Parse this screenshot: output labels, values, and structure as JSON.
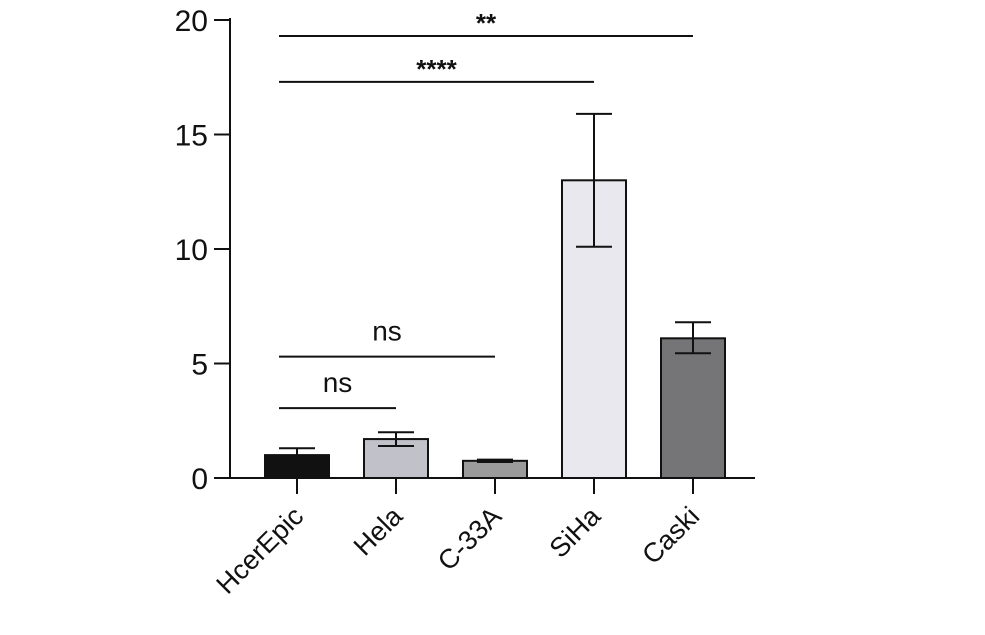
{
  "chart_data": {
    "type": "bar",
    "title": "",
    "xlabel": "",
    "ylabel": "",
    "ylim": [
      0,
      20
    ],
    "yticks": [
      0,
      5,
      10,
      15,
      20
    ],
    "categories": [
      "HcerEpic",
      "Hela",
      "C-33A",
      "SiHa",
      "Caski"
    ],
    "values": [
      1.0,
      1.7,
      0.75,
      13.0,
      6.1
    ],
    "error_low": [
      0.95,
      1.4,
      0.7,
      10.1,
      5.45
    ],
    "error_high": [
      1.3,
      2.0,
      0.8,
      15.9,
      6.8
    ],
    "bar_colors": [
      "#111111",
      "#c1c1c9",
      "#9b9b9b",
      "#e8e8ee",
      "#757577"
    ],
    "comparisons": [
      {
        "from": "HcerEpic",
        "to": "Caski",
        "label": "**",
        "y": 19.3
      },
      {
        "from": "HcerEpic",
        "to": "SiHa",
        "label": "****",
        "y": 17.3
      },
      {
        "from": "HcerEpic",
        "to": "C-33A",
        "label": "ns",
        "y": 5.3
      },
      {
        "from": "HcerEpic",
        "to": "Hela",
        "label": "ns",
        "y": 3.05
      }
    ]
  }
}
